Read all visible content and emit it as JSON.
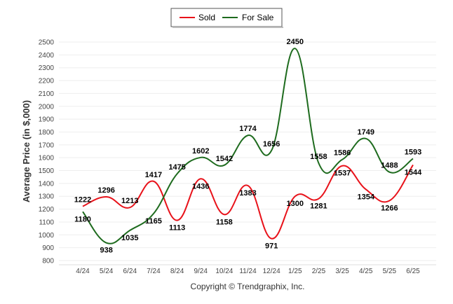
{
  "chart_data": {
    "type": "line",
    "ylabel": "Average Price (in $,000)",
    "xlabel": "",
    "categories": [
      "4/24",
      "5/24",
      "6/24",
      "7/24",
      "8/24",
      "9/24",
      "10/24",
      "11/24",
      "12/24",
      "1/25",
      "2/25",
      "3/25",
      "4/25",
      "5/25",
      "6/25"
    ],
    "ylim": [
      800,
      2500
    ],
    "yticks": [
      800,
      900,
      1000,
      1100,
      1200,
      1300,
      1400,
      1500,
      1600,
      1700,
      1800,
      1900,
      2000,
      2100,
      2200,
      2300,
      2400,
      2500
    ],
    "grid": true,
    "legend_position": "top-center",
    "series": [
      {
        "name": "Sold",
        "color": "#e8121a",
        "values": [
          1222,
          1296,
          1213,
          1417,
          1113,
          1436,
          1158,
          1383,
          971,
          1300,
          1281,
          1537,
          1354,
          1266,
          1544
        ]
      },
      {
        "name": "For Sale",
        "color": "#1e6b1e",
        "values": [
          1180,
          938,
          1035,
          1165,
          1475,
          1602,
          1542,
          1774,
          1656,
          2450,
          1558,
          1586,
          1749,
          1488,
          1593
        ]
      }
    ]
  },
  "footer": {
    "copyright": "Copyright © Trendgraphix, Inc."
  }
}
